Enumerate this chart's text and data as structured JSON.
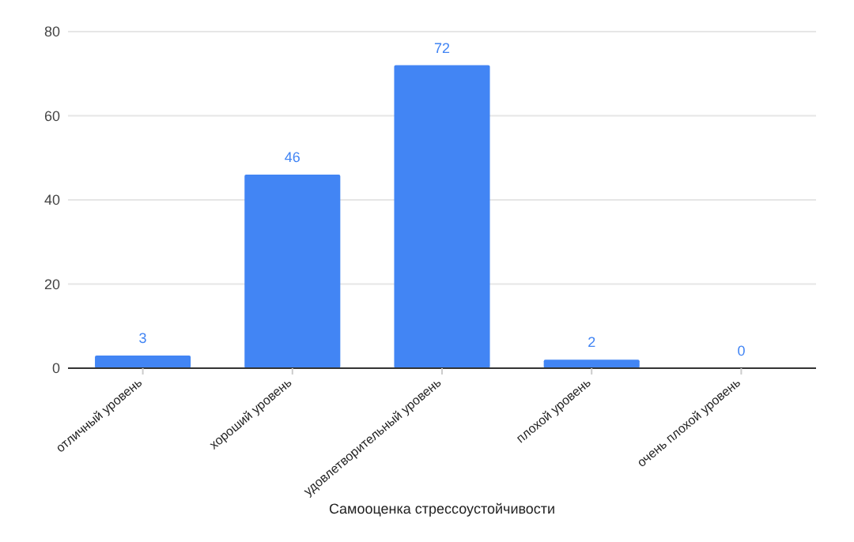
{
  "chart_data": {
    "type": "bar",
    "xlabel": "Самооценка стрессоустойчивости",
    "categories": [
      "отличный уровень",
      "хороший уровень",
      "удовлетворительный уровень",
      "плохой уровень",
      "очень плохой уровень"
    ],
    "values": [
      3,
      46,
      72,
      2,
      0
    ],
    "color": "#4285f4",
    "ylim": [
      0,
      80
    ],
    "yticks": [
      0,
      20,
      40,
      60,
      80
    ],
    "grid": "y",
    "data_labels": true
  }
}
